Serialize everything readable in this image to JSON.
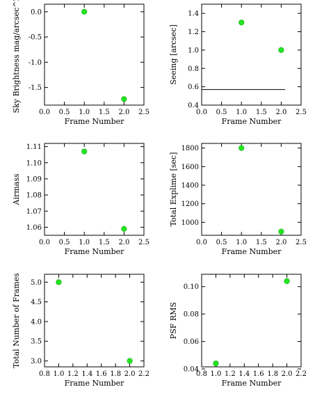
{
  "chart_data": [
    {
      "type": "scatter",
      "xlabel": "Frame Number",
      "ylabel": "Sky Brightness mag/arcsec^2",
      "xlim": [
        0.0,
        2.5
      ],
      "ylim": [
        -1.85,
        0.15
      ],
      "xticks": [
        "0.0",
        "0.5",
        "1.0",
        "1.5",
        "2.0",
        "2.5"
      ],
      "yticks": [
        "0.0",
        "-0.5",
        "-1.0",
        "-1.5"
      ],
      "x": [
        1,
        2
      ],
      "y": [
        0.0,
        -1.73
      ],
      "point_color": "#22e622"
    },
    {
      "type": "scatter",
      "xlabel": "Frame Number",
      "ylabel": "Seeing [arcsec]",
      "xlim": [
        0.0,
        2.5
      ],
      "ylim": [
        0.4,
        1.5
      ],
      "xticks": [
        "0.0",
        "0.5",
        "1.0",
        "1.5",
        "2.0",
        "2.5"
      ],
      "yticks": [
        "0.4",
        "0.6",
        "0.8",
        "1.0",
        "1.2",
        "1.4"
      ],
      "x": [
        1,
        2
      ],
      "y": [
        1.3,
        1.0
      ],
      "point_color": "#22e622",
      "hline": {
        "y": 0.57,
        "x_from": 0.0,
        "x_to": 2.1,
        "color": "#000000"
      }
    },
    {
      "type": "scatter",
      "xlabel": "Frame Number",
      "ylabel": "Airmass",
      "xlim": [
        0.0,
        2.5
      ],
      "ylim": [
        1.055,
        1.112
      ],
      "xticks": [
        "0.0",
        "0.5",
        "1.0",
        "1.5",
        "2.0",
        "2.5"
      ],
      "yticks": [
        "1.06",
        "1.07",
        "1.08",
        "1.09",
        "1.10",
        "1.11"
      ],
      "x": [
        1,
        2
      ],
      "y": [
        1.107,
        1.059
      ],
      "point_color": "#22e622"
    },
    {
      "type": "scatter",
      "xlabel": "Frame Number",
      "ylabel": "Total Explime [sec]",
      "xlim": [
        0.0,
        2.5
      ],
      "ylim": [
        860,
        1850
      ],
      "xticks": [
        "0.0",
        "0.5",
        "1.0",
        "1.5",
        "2.0",
        "2.5"
      ],
      "yticks": [
        "1000",
        "1200",
        "1400",
        "1600",
        "1800"
      ],
      "x": [
        1,
        2
      ],
      "y": [
        1800,
        900
      ],
      "point_color": "#22e622"
    },
    {
      "type": "scatter",
      "xlabel": "Frame Number",
      "ylabel": "Total Number of Frames",
      "xlim": [
        0.8,
        2.2
      ],
      "ylim": [
        2.85,
        5.2
      ],
      "xticks": [
        "0.8",
        "1.0",
        "1.2",
        "1.4",
        "1.6",
        "1.8",
        "2.0",
        "2.2"
      ],
      "yticks": [
        "3.0",
        "3.5",
        "4.0",
        "4.5",
        "5.0"
      ],
      "x": [
        1,
        2
      ],
      "y": [
        5.0,
        3.0
      ],
      "point_color": "#22e622"
    },
    {
      "type": "scatter",
      "xlabel": "Frame Number",
      "ylabel": "PSF RMS",
      "xlim": [
        0.8,
        2.2
      ],
      "ylim": [
        0.0415,
        0.109
      ],
      "xticks": [
        "0.8",
        "1.0",
        "1.2",
        "1.4",
        "1.6",
        "1.8",
        "2.0",
        "2.2"
      ],
      "yticks": [
        "0.04",
        "0.06",
        "0.08",
        "0.10"
      ],
      "x": [
        1,
        2
      ],
      "y": [
        0.044,
        0.104
      ],
      "point_color": "#22e622"
    }
  ]
}
